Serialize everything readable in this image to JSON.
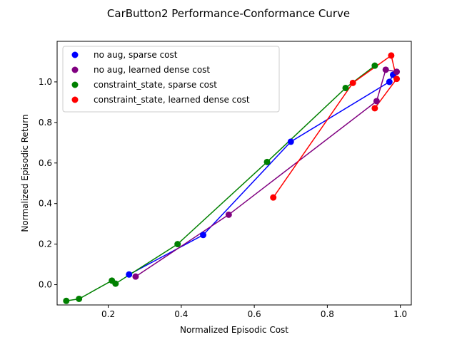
{
  "chart_data": {
    "type": "line",
    "title": "CarButton2 Performance-Conformance Curve",
    "xlabel": "Normalized Episodic Cost",
    "ylabel": "Normalized Episodic Return",
    "xlim": [
      0.06,
      1.03
    ],
    "ylim": [
      -0.1,
      1.2
    ],
    "xticks": [
      0.2,
      0.4,
      0.6,
      0.8,
      1.0
    ],
    "xtick_labels": [
      "0.2",
      "0.4",
      "0.6",
      "0.8",
      "1.0"
    ],
    "yticks": [
      0.0,
      0.2,
      0.4,
      0.6,
      0.8,
      1.0
    ],
    "ytick_labels": [
      "0.0",
      "0.2",
      "0.4",
      "0.6",
      "0.8",
      "1.0"
    ],
    "grid": false,
    "legend_position": "top-left",
    "series": [
      {
        "name": "no aug, sparse cost",
        "color": "#0000ff",
        "x": [
          0.257,
          0.46,
          0.7,
          0.97,
          0.98
        ],
        "y": [
          0.05,
          0.245,
          0.705,
          1.0,
          1.035
        ]
      },
      {
        "name": "no aug, learned dense cost",
        "color": "#800080",
        "x": [
          0.275,
          0.53,
          0.935,
          0.96,
          0.99
        ],
        "y": [
          0.04,
          0.345,
          0.905,
          1.06,
          1.05
        ]
      },
      {
        "name": "constraint_state, sparse cost",
        "color": "#008000",
        "x": [
          0.085,
          0.12,
          0.21,
          0.22,
          0.39,
          0.635,
          0.85,
          0.93
        ],
        "y": [
          -0.08,
          -0.07,
          0.02,
          0.005,
          0.2,
          0.605,
          0.97,
          1.08
        ]
      },
      {
        "name": "constraint_state, learned dense cost",
        "color": "#ff0000",
        "x": [
          0.652,
          0.87,
          0.975,
          0.99,
          0.93
        ],
        "y": [
          0.43,
          0.995,
          1.13,
          1.015,
          0.87
        ]
      }
    ]
  }
}
